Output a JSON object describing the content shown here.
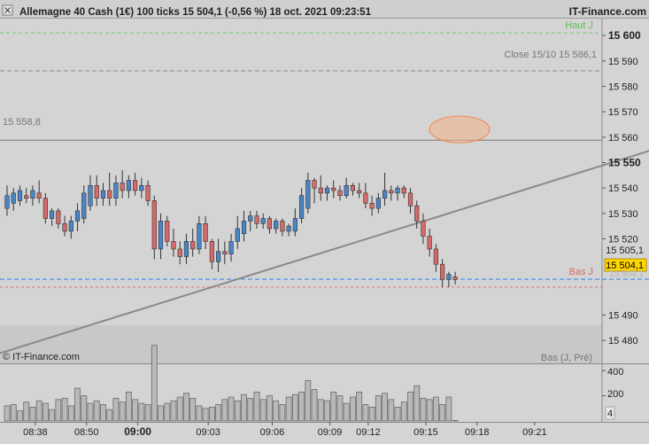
{
  "header": {
    "title": "Allemagne 40 Cash (1€) 100 ticks 15 504,1 (-0,56 %) 18 oct. 2021 09:23:51",
    "brand": "IT-Finance.com"
  },
  "overlays": {
    "haut_label": "Haut J",
    "close_label": "Close 15/10 15 586,1",
    "level_label": "15 558,8",
    "bas_label": "Bas J",
    "copyright": "© IT-Finance.com",
    "bas_legend": "Bas (J, Pré)"
  },
  "price_tags": {
    "last": "15 504,1",
    "above": "15 505,1",
    "below": "15 504,1"
  },
  "colors": {
    "background": "#d4d4d4",
    "up": "#4a86c5",
    "down": "#d46a6a",
    "haut_line": "#6fcf6f",
    "bas_line": "#e07070",
    "current_line": "#3c8cf0",
    "ellipse": "#f5a070",
    "last_tag": "#ffd500"
  },
  "chart_data": [
    {
      "type": "candlestick",
      "title": "Allemagne 40 Cash (1€) 100 ticks",
      "ylim": [
        15471,
        15607
      ],
      "y_ticks": [
        {
          "value": 15600,
          "label": "15 600",
          "bold": true
        },
        {
          "value": 15590,
          "label": "15 590"
        },
        {
          "value": 15580,
          "label": "15 580"
        },
        {
          "value": 15570,
          "label": "15 570"
        },
        {
          "value": 15560,
          "label": "15 560"
        },
        {
          "value": 15550,
          "label": "15 550",
          "bold": true
        },
        {
          "value": 15540,
          "label": "15 540"
        },
        {
          "value": 15530,
          "label": "15 530"
        },
        {
          "value": 15520,
          "label": "15 520"
        },
        {
          "value": 15490,
          "label": "15 490"
        },
        {
          "value": 15480,
          "label": "15 480"
        }
      ],
      "x_ticks": [
        {
          "index": 4,
          "label": "08:38"
        },
        {
          "index": 12,
          "label": "08:50"
        },
        {
          "index": 20,
          "label": "09:00",
          "bold": true
        },
        {
          "index": 31,
          "label": "09:03"
        },
        {
          "index": 41,
          "label": "09:06"
        },
        {
          "index": 50,
          "label": "09:09"
        },
        {
          "index": 56,
          "label": "09:12"
        },
        {
          "index": 65,
          "label": "09:15"
        },
        {
          "index": 73,
          "label": "09:18"
        },
        {
          "index": 82,
          "label": "09:21"
        }
      ],
      "reference_lines": [
        {
          "name": "Haut J",
          "value": 15601
        },
        {
          "name": "Close 15/10",
          "value": 15586.1
        },
        {
          "name": "15 558,8",
          "value": 15558.8
        },
        {
          "name": "Bas J",
          "value": 15501
        }
      ],
      "last_price": 15504.1,
      "trendline": {
        "from": [
          0,
          15475
        ],
        "to": [
          121,
          15570
        ]
      },
      "candles": [
        {
          "o": 15532,
          "h": 15541,
          "l": 15529,
          "c": 15537
        },
        {
          "o": 15534,
          "h": 15540,
          "l": 15531,
          "c": 15538
        },
        {
          "o": 15535,
          "h": 15541,
          "l": 15533,
          "c": 15539
        },
        {
          "o": 15537,
          "h": 15540,
          "l": 15534,
          "c": 15536
        },
        {
          "o": 15536,
          "h": 15541,
          "l": 15533,
          "c": 15539
        },
        {
          "o": 15538,
          "h": 15543,
          "l": 15534,
          "c": 15536
        },
        {
          "o": 15536,
          "h": 15538,
          "l": 15526,
          "c": 15528
        },
        {
          "o": 15528,
          "h": 15532,
          "l": 15525,
          "c": 15531
        },
        {
          "o": 15531,
          "h": 15532,
          "l": 15524,
          "c": 15526
        },
        {
          "o": 15526,
          "h": 15529,
          "l": 15521,
          "c": 15523
        },
        {
          "o": 15523,
          "h": 15529,
          "l": 15520,
          "c": 15527
        },
        {
          "o": 15527,
          "h": 15534,
          "l": 15523,
          "c": 15531
        },
        {
          "o": 15528,
          "h": 15541,
          "l": 15526,
          "c": 15538
        },
        {
          "o": 15533,
          "h": 15545,
          "l": 15531,
          "c": 15541
        },
        {
          "o": 15541,
          "h": 15545,
          "l": 15533,
          "c": 15536
        },
        {
          "o": 15536,
          "h": 15542,
          "l": 15533,
          "c": 15539
        },
        {
          "o": 15539,
          "h": 15546,
          "l": 15533,
          "c": 15536
        },
        {
          "o": 15536,
          "h": 15545,
          "l": 15533,
          "c": 15542
        },
        {
          "o": 15542,
          "h": 15547,
          "l": 15536,
          "c": 15539
        },
        {
          "o": 15539,
          "h": 15545,
          "l": 15536,
          "c": 15543
        },
        {
          "o": 15543,
          "h": 15546,
          "l": 15537,
          "c": 15539
        },
        {
          "o": 15539,
          "h": 15544,
          "l": 15536,
          "c": 15541
        },
        {
          "o": 15541,
          "h": 15543,
          "l": 15533,
          "c": 15535
        },
        {
          "o": 15535,
          "h": 15537,
          "l": 15512,
          "c": 15516
        },
        {
          "o": 15516,
          "h": 15530,
          "l": 15512,
          "c": 15527
        },
        {
          "o": 15527,
          "h": 15529,
          "l": 15517,
          "c": 15519
        },
        {
          "o": 15519,
          "h": 15524,
          "l": 15513,
          "c": 15516
        },
        {
          "o": 15516,
          "h": 15519,
          "l": 15510,
          "c": 15513
        },
        {
          "o": 15513,
          "h": 15522,
          "l": 15510,
          "c": 15519
        },
        {
          "o": 15519,
          "h": 15524,
          "l": 15513,
          "c": 15516
        },
        {
          "o": 15516,
          "h": 15529,
          "l": 15514,
          "c": 15526
        },
        {
          "o": 15526,
          "h": 15529,
          "l": 15516,
          "c": 15519
        },
        {
          "o": 15519,
          "h": 15520,
          "l": 15508,
          "c": 15511
        },
        {
          "o": 15511,
          "h": 15520,
          "l": 15507,
          "c": 15515
        },
        {
          "o": 15515,
          "h": 15519,
          "l": 15510,
          "c": 15514
        },
        {
          "o": 15514,
          "h": 15522,
          "l": 15511,
          "c": 15519
        },
        {
          "o": 15519,
          "h": 15529,
          "l": 15516,
          "c": 15524
        },
        {
          "o": 15522,
          "h": 15531,
          "l": 15519,
          "c": 15527
        },
        {
          "o": 15527,
          "h": 15531,
          "l": 15523,
          "c": 15529
        },
        {
          "o": 15529,
          "h": 15531,
          "l": 15524,
          "c": 15526
        },
        {
          "o": 15526,
          "h": 15530,
          "l": 15524,
          "c": 15528
        },
        {
          "o": 15528,
          "h": 15529,
          "l": 15522,
          "c": 15524
        },
        {
          "o": 15524,
          "h": 15528,
          "l": 15522,
          "c": 15527
        },
        {
          "o": 15527,
          "h": 15528,
          "l": 15521,
          "c": 15523
        },
        {
          "o": 15523,
          "h": 15526,
          "l": 15521,
          "c": 15525
        },
        {
          "o": 15523,
          "h": 15532,
          "l": 15521,
          "c": 15528
        },
        {
          "o": 15528,
          "h": 15540,
          "l": 15526,
          "c": 15537
        },
        {
          "o": 15532,
          "h": 15546,
          "l": 15530,
          "c": 15543
        },
        {
          "o": 15543,
          "h": 15544,
          "l": 15534,
          "c": 15540
        },
        {
          "o": 15540,
          "h": 15545,
          "l": 15535,
          "c": 15538
        },
        {
          "o": 15538,
          "h": 15541,
          "l": 15535,
          "c": 15540
        },
        {
          "o": 15540,
          "h": 15543,
          "l": 15536,
          "c": 15539
        },
        {
          "o": 15539,
          "h": 15541,
          "l": 15535,
          "c": 15537
        },
        {
          "o": 15537,
          "h": 15544,
          "l": 15536,
          "c": 15541
        },
        {
          "o": 15541,
          "h": 15542,
          "l": 15537,
          "c": 15539
        },
        {
          "o": 15539,
          "h": 15542,
          "l": 15536,
          "c": 15538
        },
        {
          "o": 15538,
          "h": 15542,
          "l": 15532,
          "c": 15534
        },
        {
          "o": 15534,
          "h": 15537,
          "l": 15529,
          "c": 15532
        },
        {
          "o": 15532,
          "h": 15538,
          "l": 15530,
          "c": 15536
        },
        {
          "o": 15536,
          "h": 15546,
          "l": 15533,
          "c": 15539
        },
        {
          "o": 15539,
          "h": 15541,
          "l": 15535,
          "c": 15538
        },
        {
          "o": 15538,
          "h": 15541,
          "l": 15535,
          "c": 15540
        },
        {
          "o": 15540,
          "h": 15541,
          "l": 15536,
          "c": 15538
        },
        {
          "o": 15538,
          "h": 15540,
          "l": 15530,
          "c": 15533
        },
        {
          "o": 15533,
          "h": 15535,
          "l": 15524,
          "c": 15527
        },
        {
          "o": 15527,
          "h": 15530,
          "l": 15518,
          "c": 15521
        },
        {
          "o": 15521,
          "h": 15524,
          "l": 15513,
          "c": 15516
        },
        {
          "o": 15516,
          "h": 15518,
          "l": 15507,
          "c": 15510
        },
        {
          "o": 15510,
          "h": 15512,
          "l": 15501,
          "c": 15504
        },
        {
          "o": 15504,
          "h": 15507,
          "l": 15501,
          "c": 15506
        },
        {
          "o": 15505,
          "h": 15507,
          "l": 15502,
          "c": 15504
        }
      ],
      "volume": {
        "y_ticks": [
          {
            "value": 400,
            "label": "400"
          },
          {
            "value": 200,
            "label": "200"
          }
        ],
        "last_label": "4",
        "values": [
          120,
          130,
          80,
          150,
          110,
          160,
          140,
          90,
          170,
          180,
          120,
          260,
          200,
          140,
          160,
          130,
          90,
          180,
          150,
          230,
          170,
          140,
          130,
          600,
          120,
          140,
          160,
          190,
          220,
          180,
          120,
          100,
          110,
          130,
          170,
          190,
          160,
          210,
          180,
          230,
          170,
          200,
          160,
          130,
          190,
          210,
          230,
          320,
          250,
          170,
          160,
          230,
          200,
          140,
          190,
          230,
          130,
          110,
          200,
          220,
          170,
          110,
          150,
          230,
          280,
          180,
          170,
          190,
          130,
          190,
          4
        ]
      }
    }
  ]
}
